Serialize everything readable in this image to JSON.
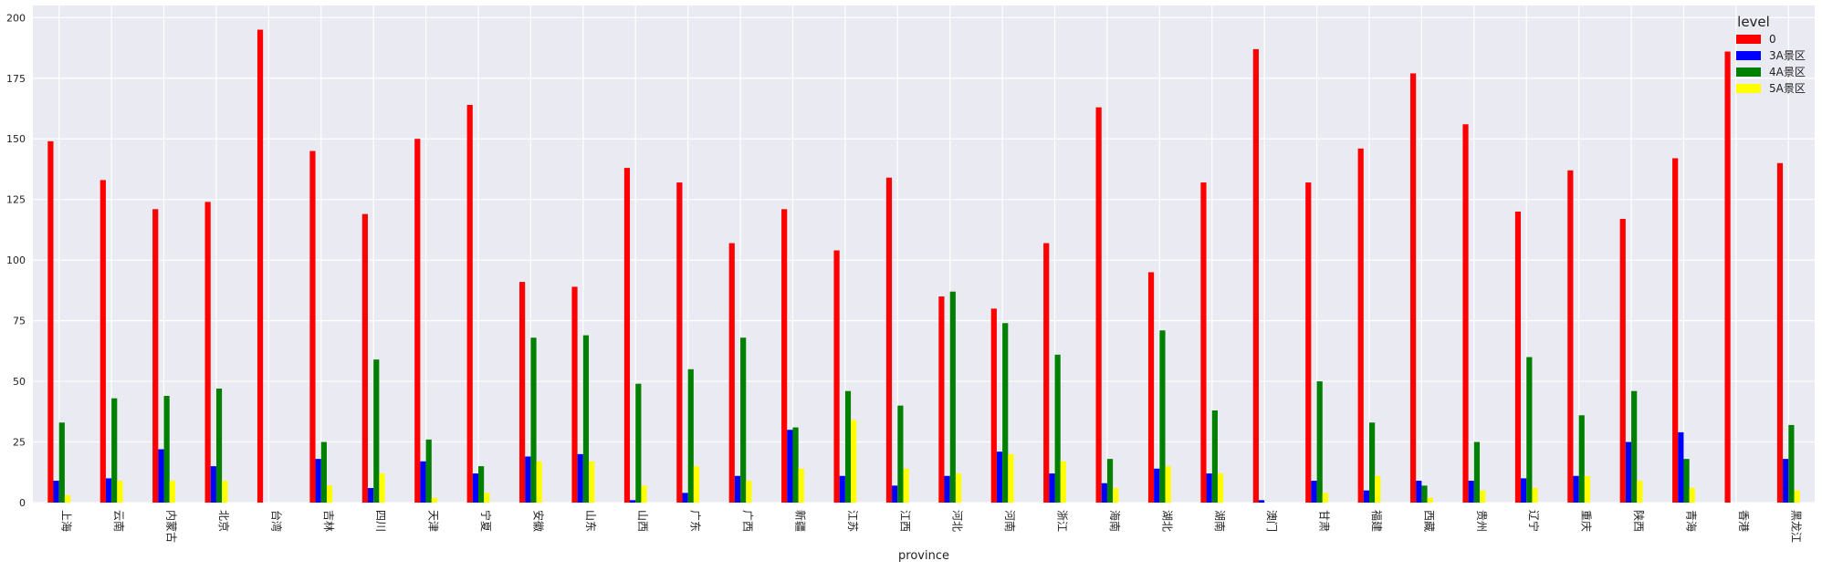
{
  "chart_data": {
    "type": "bar",
    "xlabel": "province",
    "ylabel": "",
    "ylim": [
      0,
      205
    ],
    "yticks": [
      0,
      25,
      50,
      75,
      100,
      125,
      150,
      175,
      200
    ],
    "grid": true,
    "legend": {
      "title": "level",
      "placement": "top-right"
    },
    "categories": [
      "上海",
      "云南",
      "内蒙古",
      "北京",
      "台湾",
      "吉林",
      "四川",
      "天津",
      "宁夏",
      "安徽",
      "山东",
      "山西",
      "广东",
      "广西",
      "新疆",
      "江苏",
      "江西",
      "河北",
      "河南",
      "浙江",
      "海南",
      "湖北",
      "湖南",
      "澳门",
      "甘肃",
      "福建",
      "西藏",
      "贵州",
      "辽宁",
      "重庆",
      "陕西",
      "青海",
      "香港",
      "黑龙江"
    ],
    "series": [
      {
        "name": "0",
        "color": "#ff0000",
        "values": [
          149,
          133,
          121,
          124,
          195,
          145,
          119,
          150,
          164,
          91,
          89,
          138,
          132,
          107,
          121,
          104,
          134,
          85,
          80,
          107,
          163,
          95,
          132,
          187,
          132,
          146,
          177,
          156,
          120,
          137,
          117,
          142,
          186,
          140
        ]
      },
      {
        "name": "3A景区",
        "color": "#0000ff",
        "values": [
          9,
          10,
          22,
          15,
          0,
          18,
          6,
          17,
          12,
          19,
          20,
          1,
          4,
          11,
          30,
          11,
          7,
          11,
          21,
          12,
          8,
          14,
          12,
          1,
          9,
          5,
          9,
          9,
          10,
          11,
          25,
          29,
          0,
          18
        ]
      },
      {
        "name": "4A景区",
        "color": "#008000",
        "values": [
          33,
          43,
          44,
          47,
          0,
          25,
          59,
          26,
          15,
          68,
          69,
          49,
          55,
          68,
          31,
          46,
          40,
          87,
          74,
          61,
          18,
          71,
          38,
          0,
          50,
          33,
          7,
          25,
          60,
          36,
          46,
          18,
          0,
          32
        ]
      },
      {
        "name": "5A景区",
        "color": "#ffff00",
        "values": [
          3,
          9,
          9,
          9,
          0,
          7,
          12,
          2,
          4,
          17,
          17,
          7,
          15,
          9,
          14,
          34,
          14,
          12,
          20,
          17,
          6,
          15,
          12,
          0,
          4,
          11,
          2,
          5,
          6,
          11,
          9,
          6,
          0,
          5
        ]
      }
    ]
  }
}
